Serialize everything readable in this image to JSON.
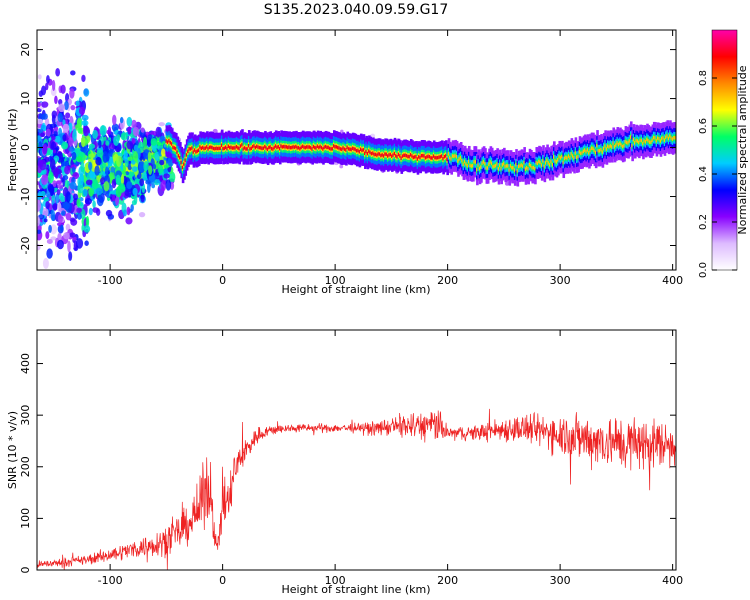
{
  "title": "S135.2023.040.09.59.G17",
  "colors": {
    "snr_line": "#ee2222",
    "colormap": [
      "#ffffff",
      "#ddbbff",
      "#8800ff",
      "#0000ff",
      "#00ccff",
      "#00ff66",
      "#ffff00",
      "#ff8800",
      "#ff0000",
      "#ff00aa"
    ]
  },
  "chart_data": [
    {
      "type": "heatmap",
      "xlabel": "Height of straight line (km)",
      "ylabel": "Frequency (Hz)",
      "xlim": [
        -165,
        403
      ],
      "ylim": [
        -25,
        24
      ],
      "xticks": [
        -100,
        0,
        100,
        200,
        300,
        400
      ],
      "yticks": [
        -20,
        -10,
        0,
        10,
        20
      ],
      "colorbar": {
        "label": "Normalized spectral amplitude",
        "range": [
          0,
          1
        ],
        "ticks": [
          0.0,
          0.2,
          0.4,
          0.6,
          0.8
        ]
      },
      "ridge": {
        "x": [
          -50,
          -45,
          -40,
          -35,
          -30,
          -25,
          -20,
          -10,
          0,
          20,
          40,
          60,
          80,
          100,
          120,
          130,
          140,
          160,
          180,
          200,
          210,
          220,
          240,
          260,
          280,
          300,
          320,
          340,
          360,
          380,
          400
        ],
        "y": [
          1.5,
          0.5,
          -1,
          -4,
          0,
          -1,
          0,
          0,
          0,
          0,
          0,
          0,
          0,
          0,
          -0.5,
          -1,
          -1.5,
          -1.8,
          -1.8,
          -2,
          -2.2,
          -3.5,
          -3.5,
          -4,
          -3.5,
          -2.5,
          -1,
          0,
          1,
          1.5,
          2
        ]
      }
    },
    {
      "type": "line",
      "xlabel": "Height of straight line (km)",
      "ylabel": "SNR (10 * v/v)",
      "xlim": [
        -165,
        403
      ],
      "ylim": [
        0,
        465
      ],
      "xticks": [
        -100,
        0,
        100,
        200,
        300,
        400
      ],
      "yticks": [
        0,
        100,
        200,
        300,
        400
      ],
      "series": [
        {
          "x": [
            -165,
            -140,
            -120,
            -100,
            -80,
            -60,
            -50,
            -40,
            -30,
            -20,
            -15,
            -10,
            -5,
            0,
            5,
            10,
            20,
            30,
            40,
            60,
            80,
            100,
            120,
            140,
            160,
            170,
            180,
            190,
            200,
            220,
            240,
            260,
            280,
            300,
            320,
            340,
            360,
            380,
            400
          ],
          "y": [
            10,
            15,
            20,
            30,
            40,
            50,
            60,
            70,
            90,
            120,
            160,
            150,
            30,
            140,
            120,
            190,
            230,
            260,
            270,
            275,
            275,
            275,
            275,
            275,
            280,
            278,
            280,
            282,
            265,
            265,
            270,
            275,
            270,
            265,
            255,
            250,
            245,
            245,
            245
          ],
          "noise": [
            10,
            12,
            15,
            20,
            25,
            35,
            45,
            50,
            55,
            80,
            100,
            90,
            30,
            90,
            80,
            60,
            40,
            25,
            15,
            12,
            12,
            12,
            15,
            20,
            35,
            40,
            45,
            50,
            20,
            20,
            30,
            40,
            45,
            60,
            70,
            75,
            80,
            75,
            70
          ]
        }
      ]
    }
  ]
}
